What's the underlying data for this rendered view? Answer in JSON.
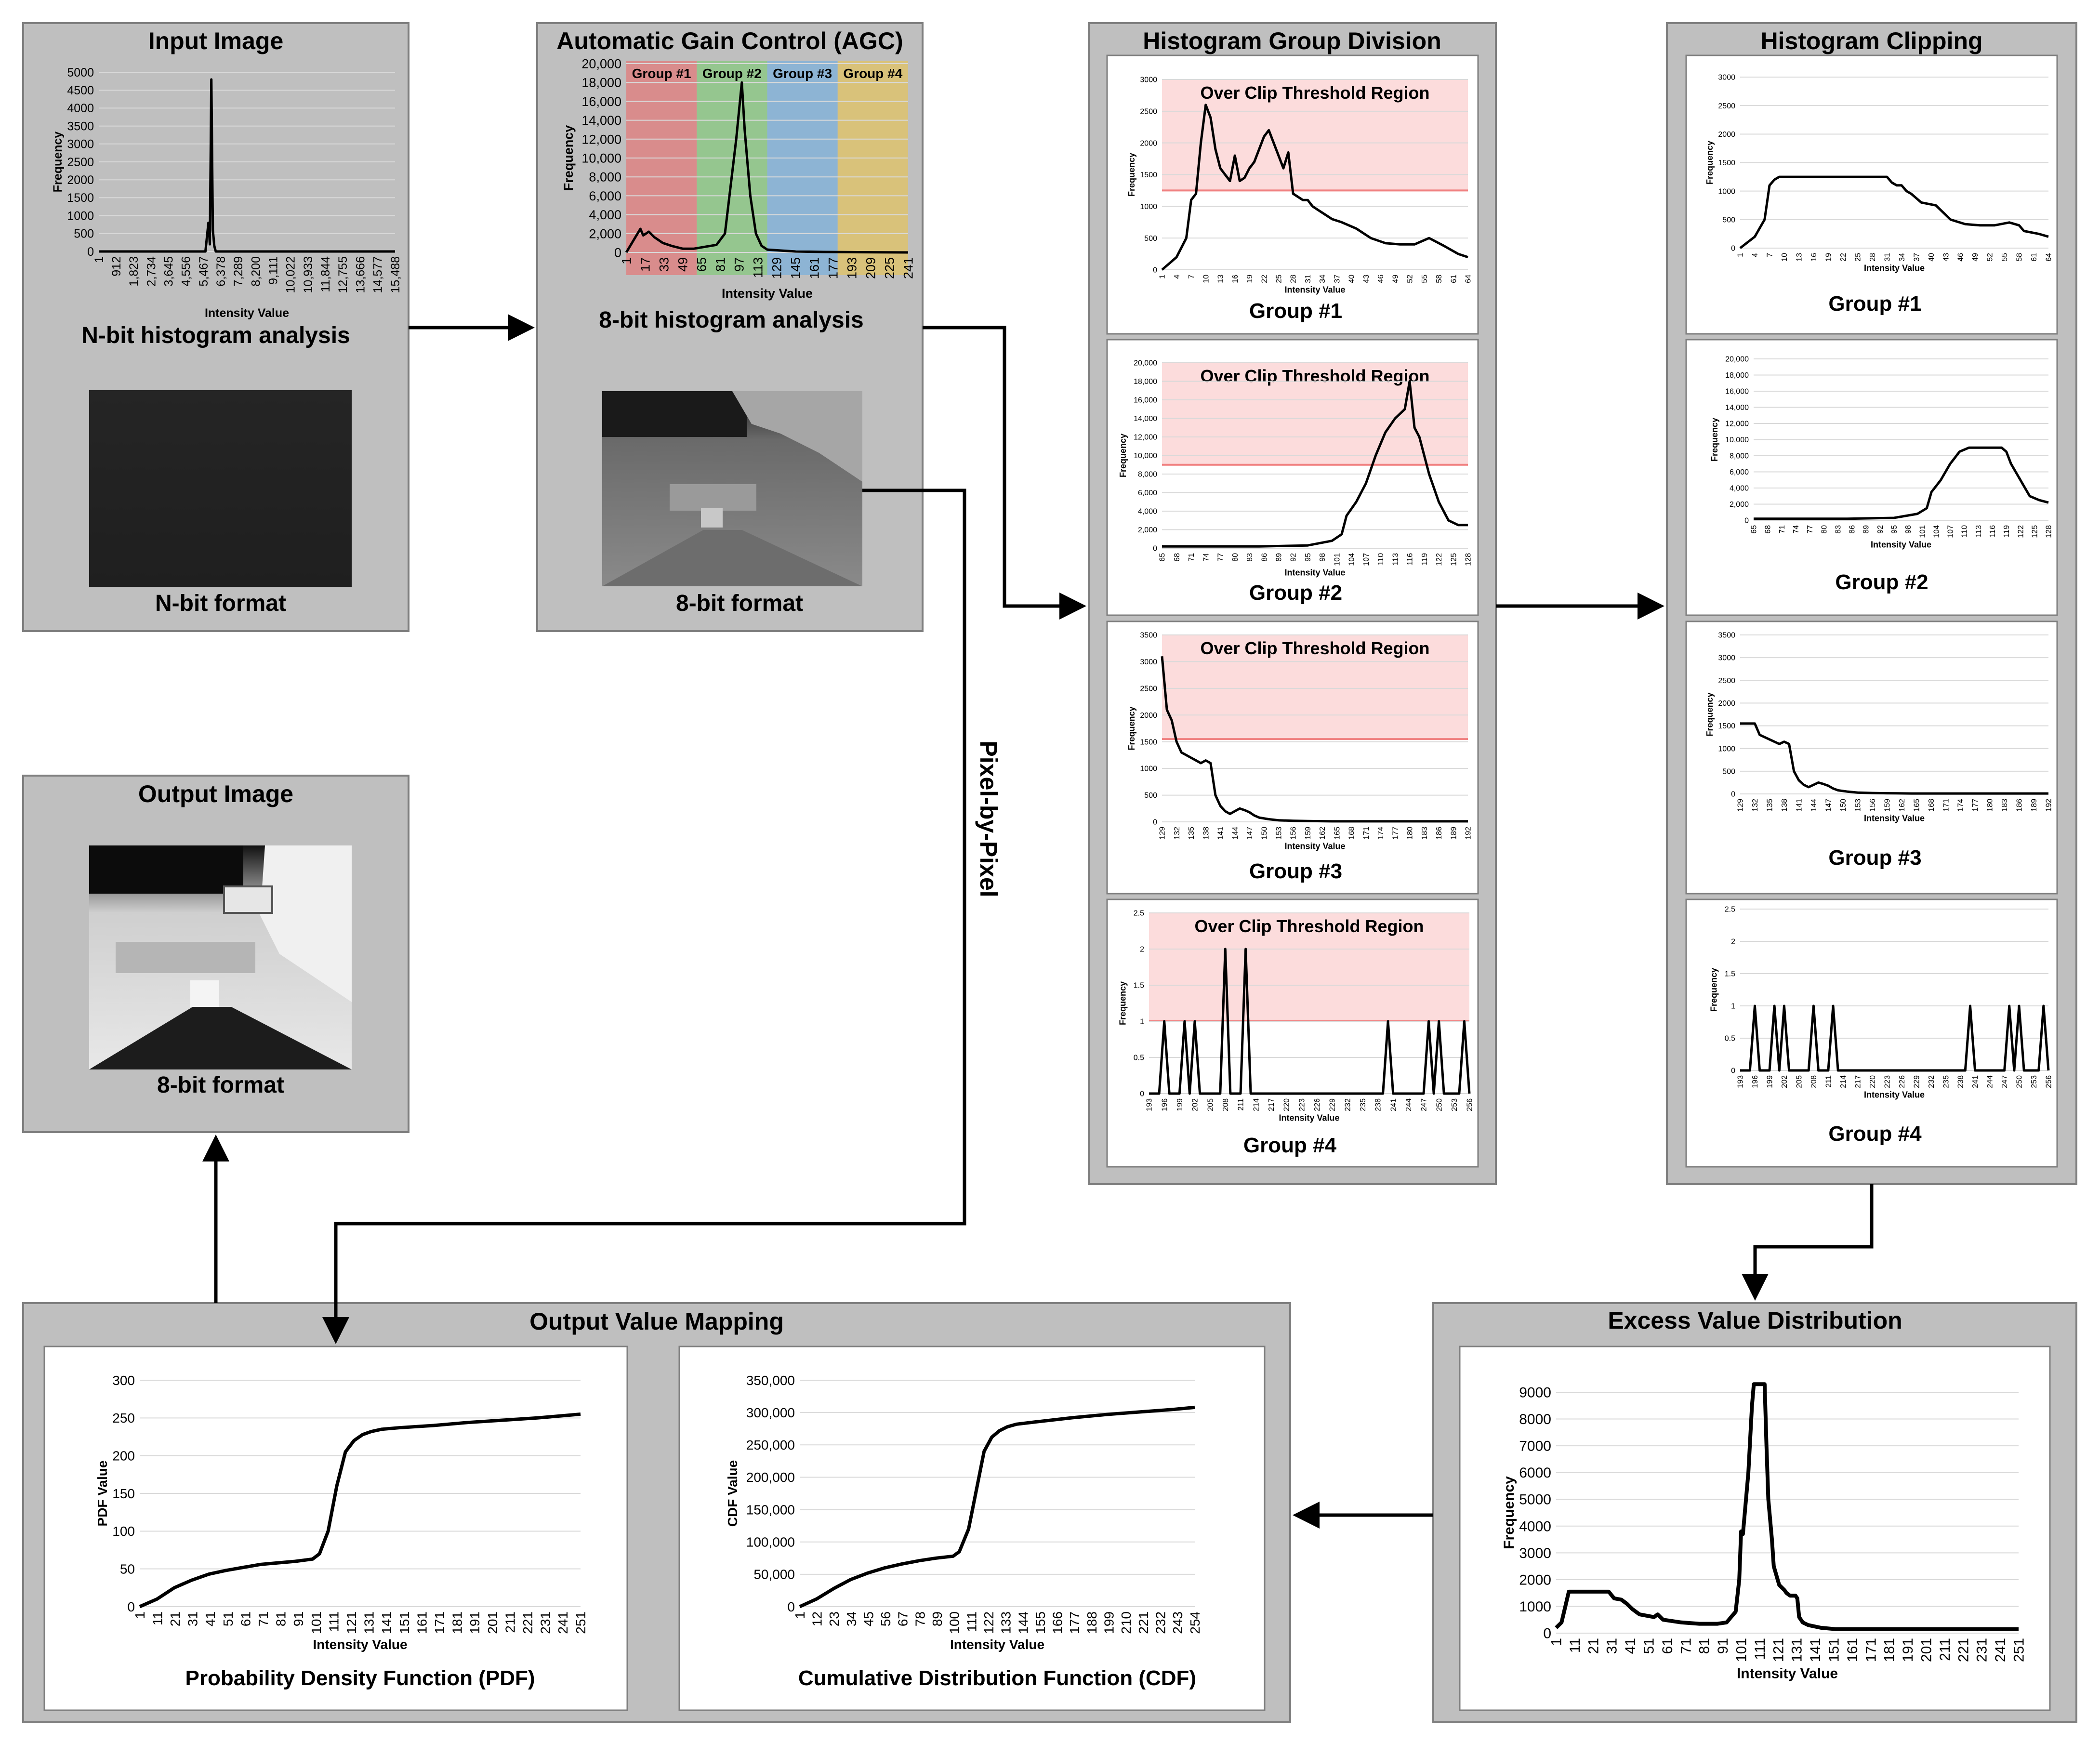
{
  "colors": {
    "panel": "#bfbfbf",
    "panel_border": "#7f7f7f",
    "clip_region": "#fcdcdc",
    "clip_line": "#f08080",
    "group1": "#d98c8c",
    "group2": "#95c68f",
    "group3": "#8db4d4",
    "group4": "#d9c27a",
    "image_dark": "#222222"
  },
  "panels": {
    "input": {
      "title": "Input Image",
      "hist_caption": "N-bit histogram analysis",
      "img_caption": "N-bit format"
    },
    "agc": {
      "title": "Automatic Gain Control (AGC)",
      "hist_caption": "8-bit histogram analysis",
      "img_caption": "8-bit format"
    },
    "hgd": {
      "title": "Histogram Group Division"
    },
    "clip": {
      "title": "Histogram Clipping"
    },
    "output": {
      "title": "Output Image",
      "img_caption": "8-bit format"
    },
    "ovm": {
      "title": "Output Value Mapping"
    },
    "evd": {
      "title": "Excess Value Distribution"
    }
  },
  "pixel_label": "Pixel-by-Pixel",
  "chart_data": [
    {
      "id": "input-hist",
      "type": "line",
      "title": "",
      "xlabel": "Intensity Value",
      "ylabel": "Frequency",
      "ylim": [
        0,
        5000
      ],
      "yticks": [
        "0",
        "500",
        "1000",
        "1500",
        "2000",
        "2500",
        "3000",
        "3500",
        "4000",
        "4500",
        "5000"
      ],
      "xticks": [
        "1",
        "912",
        "1,823",
        "2,734",
        "3,645",
        "4,556",
        "5,467",
        "6,378",
        "7,289",
        "8,200",
        "9,111",
        "10,022",
        "10,933",
        "11,844",
        "12,755",
        "13,666",
        "14,577",
        "15,488"
      ],
      "x": [
        0,
        0.36,
        0.37,
        0.375,
        0.38,
        0.385,
        0.39,
        0.395,
        0.4,
        0.405,
        0.41,
        1
      ],
      "values": [
        0,
        0,
        800,
        200,
        4800,
        600,
        150,
        0,
        0,
        0,
        0,
        0
      ]
    },
    {
      "id": "agc-hist",
      "type": "line",
      "title": "",
      "xlabel": "Intensity Value",
      "ylabel": "Frequency",
      "ylim": [
        0,
        20000
      ],
      "yticks": [
        "0",
        "2,000",
        "4,000",
        "6,000",
        "8,000",
        "10,000",
        "12,000",
        "14,000",
        "16,000",
        "18,000",
        "20,000"
      ],
      "xticks": [
        "1",
        "17",
        "33",
        "49",
        "65",
        "81",
        "97",
        "113",
        "129",
        "145",
        "161",
        "177",
        "193",
        "209",
        "225",
        "241"
      ],
      "groups": [
        "Group #1",
        "Group #2",
        "Group #3",
        "Group #4"
      ],
      "x": [
        0,
        0.03,
        0.05,
        0.06,
        0.08,
        0.1,
        0.13,
        0.16,
        0.2,
        0.24,
        0.28,
        0.32,
        0.35,
        0.37,
        0.39,
        0.41,
        0.42,
        0.44,
        0.46,
        0.48,
        0.5,
        0.55,
        0.6,
        0.7,
        0.8,
        1
      ],
      "values": [
        0,
        1500,
        2500,
        1800,
        2200,
        1600,
        1000,
        700,
        400,
        400,
        600,
        800,
        2000,
        7000,
        12000,
        18000,
        13000,
        6000,
        2000,
        700,
        300,
        200,
        100,
        50,
        30,
        0
      ]
    },
    {
      "id": "hgd-g1",
      "type": "line",
      "title": "Group #1",
      "region_label": "Over Clip Threshold Region",
      "threshold": 1250,
      "xlabel": "Intensity Value",
      "ylabel": "Frequency",
      "ylim": [
        0,
        3000
      ],
      "yticks": [
        "0",
        "500",
        "1000",
        "1500",
        "2000",
        "2500",
        "3000"
      ],
      "xticks": [
        "1",
        "4",
        "7",
        "10",
        "13",
        "16",
        "19",
        "22",
        "25",
        "28",
        "31",
        "34",
        "37",
        "40",
        "43",
        "46",
        "49",
        "52",
        "55",
        "58",
        "61",
        "64"
      ],
      "x": [
        0,
        3,
        5,
        6,
        7,
        8,
        9,
        10,
        11,
        12,
        13,
        14,
        15,
        16,
        17,
        18,
        19,
        20,
        21,
        22,
        23,
        24,
        25,
        26,
        27,
        28,
        29,
        30,
        31,
        32,
        33,
        35,
        37,
        40,
        43,
        46,
        49,
        52,
        55,
        58,
        61,
        63
      ],
      "values": [
        0,
        200,
        500,
        1100,
        1200,
        2000,
        2600,
        2400,
        1900,
        1600,
        1500,
        1400,
        1800,
        1400,
        1450,
        1600,
        1700,
        1900,
        2100,
        2200,
        2000,
        1800,
        1600,
        1850,
        1200,
        1150,
        1100,
        1100,
        1000,
        950,
        900,
        800,
        750,
        650,
        500,
        420,
        400,
        400,
        500,
        380,
        250,
        200
      ]
    },
    {
      "id": "hgd-g2",
      "type": "line",
      "title": "Group #2",
      "region_label": "Over Clip Threshold Region",
      "threshold": 9000,
      "xlabel": "Intensity Value",
      "ylabel": "Frequency",
      "ylim": [
        0,
        20000
      ],
      "yticks": [
        "0",
        "2,000",
        "4,000",
        "6,000",
        "8,000",
        "10,000",
        "12,000",
        "14,000",
        "16,000",
        "18,000",
        "20,000"
      ],
      "xticks": [
        "65",
        "68",
        "71",
        "74",
        "77",
        "80",
        "83",
        "86",
        "89",
        "92",
        "95",
        "98",
        "101",
        "104",
        "107",
        "110",
        "113",
        "116",
        "119",
        "122",
        "125",
        "128"
      ],
      "x": [
        0,
        20,
        30,
        35,
        37,
        38,
        40,
        42,
        44,
        46,
        48,
        50,
        51,
        52,
        53,
        54,
        55,
        57,
        59,
        61,
        63
      ],
      "values": [
        200,
        200,
        300,
        800,
        1500,
        3500,
        5000,
        7000,
        10000,
        12500,
        14000,
        15000,
        18000,
        13000,
        12000,
        10000,
        8000,
        5000,
        3000,
        2500,
        2500
      ]
    },
    {
      "id": "hgd-g3",
      "type": "line",
      "title": "Group #3",
      "region_label": "Over Clip Threshold Region",
      "threshold": 1550,
      "xlabel": "Intensity Value",
      "ylabel": "Frequency",
      "ylim": [
        0,
        3500
      ],
      "yticks": [
        "0",
        "500",
        "1000",
        "1500",
        "2000",
        "2500",
        "3000",
        "3500"
      ],
      "xticks": [
        "129",
        "132",
        "135",
        "138",
        "141",
        "144",
        "147",
        "150",
        "153",
        "156",
        "159",
        "162",
        "165",
        "168",
        "171",
        "174",
        "177",
        "180",
        "183",
        "186",
        "189",
        "192"
      ],
      "x": [
        0,
        1,
        2,
        3,
        4,
        5,
        6,
        7,
        8,
        9,
        10,
        11,
        12,
        13,
        14,
        15,
        16,
        17,
        18,
        19,
        20,
        22,
        24,
        27,
        30,
        35,
        40,
        50,
        63
      ],
      "values": [
        3100,
        2100,
        1900,
        1500,
        1300,
        1250,
        1200,
        1150,
        1100,
        1150,
        1100,
        500,
        300,
        200,
        150,
        200,
        250,
        220,
        180,
        120,
        80,
        50,
        30,
        20,
        15,
        10,
        10,
        10,
        10
      ]
    },
    {
      "id": "hgd-g4",
      "type": "line",
      "title": "Group #4",
      "region_label": "Over Clip Threshold Region",
      "threshold": 1,
      "xlabel": "Intensity Value",
      "ylabel": "Frequency",
      "ylim": [
        0,
        2.5
      ],
      "yticks": [
        "0",
        "0.5",
        "1",
        "1.5",
        "2",
        "2.5"
      ],
      "xticks": [
        "193",
        "196",
        "199",
        "202",
        "205",
        "208",
        "211",
        "214",
        "217",
        "220",
        "223",
        "226",
        "229",
        "232",
        "235",
        "238",
        "241",
        "244",
        "247",
        "250",
        "253",
        "256"
      ],
      "x": [
        0,
        2,
        3,
        4,
        6,
        7,
        8,
        9,
        10,
        14,
        15,
        16,
        18,
        19,
        20,
        46,
        47,
        48,
        54,
        55,
        56,
        57,
        58,
        61,
        62,
        63
      ],
      "values": [
        0,
        0,
        1,
        0,
        0,
        1,
        0,
        1,
        0,
        0,
        2,
        0,
        0,
        2,
        0,
        0,
        1,
        0,
        0,
        1,
        0,
        1,
        0,
        0,
        1,
        0
      ]
    },
    {
      "id": "clip-g1",
      "type": "line",
      "title": "Group #1",
      "xlabel": "Intensity Value",
      "ylabel": "Frequency",
      "ylim": [
        0,
        3000
      ],
      "yticks": [
        "0",
        "500",
        "1000",
        "1500",
        "2000",
        "2500",
        "3000"
      ],
      "xticks": [
        "1",
        "4",
        "7",
        "10",
        "13",
        "16",
        "19",
        "22",
        "25",
        "28",
        "31",
        "34",
        "37",
        "40",
        "43",
        "46",
        "49",
        "52",
        "55",
        "58",
        "61",
        "64"
      ],
      "x": [
        0,
        3,
        5,
        6,
        7,
        8,
        30,
        31,
        32,
        33,
        34,
        35,
        37,
        40,
        43,
        46,
        49,
        52,
        55,
        57,
        58,
        61,
        63
      ],
      "values": [
        0,
        200,
        500,
        1100,
        1200,
        1250,
        1250,
        1150,
        1100,
        1100,
        1000,
        950,
        800,
        750,
        500,
        420,
        400,
        400,
        450,
        400,
        300,
        250,
        200
      ]
    },
    {
      "id": "clip-g2",
      "type": "line",
      "title": "Group #2",
      "xlabel": "Intensity Value",
      "ylabel": "Frequency",
      "ylim": [
        0,
        20000
      ],
      "yticks": [
        "0",
        "2,000",
        "4,000",
        "6,000",
        "8,000",
        "10,000",
        "12,000",
        "14,000",
        "16,000",
        "18,000",
        "20,000"
      ],
      "xticks": [
        "65",
        "68",
        "71",
        "74",
        "77",
        "80",
        "83",
        "86",
        "89",
        "92",
        "95",
        "98",
        "101",
        "104",
        "107",
        "110",
        "113",
        "116",
        "119",
        "122",
        "125",
        "128"
      ],
      "x": [
        0,
        20,
        30,
        35,
        37,
        38,
        40,
        42,
        44,
        46,
        53,
        54,
        55,
        57,
        59,
        61,
        63
      ],
      "values": [
        200,
        200,
        300,
        800,
        1500,
        3500,
        5000,
        7000,
        8500,
        9000,
        9000,
        8500,
        7000,
        5000,
        3000,
        2500,
        2200
      ]
    },
    {
      "id": "clip-g3",
      "type": "line",
      "title": "Group #3",
      "xlabel": "Intensity Value",
      "ylabel": "Frequency",
      "ylim": [
        0,
        3500
      ],
      "yticks": [
        "0",
        "500",
        "1000",
        "1500",
        "2000",
        "2500",
        "3000",
        "3500"
      ],
      "xticks": [
        "129",
        "132",
        "135",
        "138",
        "141",
        "144",
        "147",
        "150",
        "153",
        "156",
        "159",
        "162",
        "165",
        "168",
        "171",
        "174",
        "177",
        "180",
        "183",
        "186",
        "189",
        "192"
      ],
      "x": [
        0,
        3,
        4,
        5,
        6,
        7,
        8,
        9,
        10,
        11,
        12,
        13,
        14,
        15,
        16,
        17,
        18,
        19,
        20,
        22,
        24,
        27,
        30,
        35,
        40,
        50,
        63
      ],
      "values": [
        1550,
        1550,
        1300,
        1250,
        1200,
        1150,
        1100,
        1150,
        1100,
        500,
        300,
        200,
        150,
        200,
        250,
        220,
        180,
        120,
        80,
        50,
        30,
        20,
        15,
        10,
        10,
        10,
        10
      ]
    },
    {
      "id": "clip-g4",
      "type": "line",
      "title": "Group #4",
      "xlabel": "Intensity Value",
      "ylabel": "Frequency",
      "ylim": [
        0,
        2.5
      ],
      "yticks": [
        "0",
        "0.5",
        "1",
        "1.5",
        "2",
        "2.5"
      ],
      "xticks": [
        "193",
        "196",
        "199",
        "202",
        "205",
        "208",
        "211",
        "214",
        "217",
        "220",
        "223",
        "226",
        "229",
        "232",
        "235",
        "238",
        "241",
        "244",
        "247",
        "250",
        "253",
        "256"
      ],
      "x": [
        0,
        2,
        3,
        4,
        6,
        7,
        8,
        9,
        10,
        14,
        15,
        16,
        18,
        19,
        20,
        46,
        47,
        48,
        54,
        55,
        56,
        57,
        58,
        61,
        62,
        63
      ],
      "values": [
        0,
        0,
        1,
        0,
        0,
        1,
        0,
        1,
        0,
        0,
        1,
        0,
        0,
        1,
        0,
        0,
        1,
        0,
        0,
        1,
        0,
        1,
        0,
        0,
        1,
        0
      ]
    },
    {
      "id": "pdf",
      "type": "line",
      "title": "Probability Density Function (PDF)",
      "xlabel": "Intensity Value",
      "ylabel": "PDF Value",
      "ylim": [
        0,
        300
      ],
      "yticks": [
        "0",
        "50",
        "100",
        "150",
        "200",
        "250",
        "300"
      ],
      "xticks": [
        "1",
        "11",
        "21",
        "31",
        "41",
        "51",
        "61",
        "71",
        "81",
        "91",
        "101",
        "111",
        "121",
        "131",
        "141",
        "151",
        "161",
        "171",
        "181",
        "191",
        "201",
        "211",
        "221",
        "231",
        "241",
        "251"
      ],
      "x": [
        1,
        11,
        21,
        31,
        41,
        51,
        61,
        71,
        81,
        91,
        101,
        105,
        110,
        115,
        120,
        125,
        130,
        135,
        141,
        151,
        171,
        191,
        211,
        231,
        256
      ],
      "values": [
        0,
        10,
        25,
        35,
        43,
        48,
        52,
        56,
        58,
        60,
        63,
        70,
        100,
        160,
        205,
        220,
        228,
        232,
        235,
        237,
        240,
        244,
        247,
        250,
        255
      ]
    },
    {
      "id": "cdf",
      "type": "line",
      "title": "Cumulative Distribution Function (CDF)",
      "xlabel": "Intensity Value",
      "ylabel": "CDF Value",
      "ylim": [
        0,
        350000
      ],
      "yticks": [
        "0",
        "50,000",
        "100,000",
        "150,000",
        "200,000",
        "250,000",
        "300,000",
        "350,000"
      ],
      "xticks": [
        "1",
        "12",
        "23",
        "34",
        "45",
        "56",
        "67",
        "78",
        "89",
        "100",
        "111",
        "122",
        "133",
        "144",
        "155",
        "166",
        "177",
        "188",
        "199",
        "210",
        "221",
        "232",
        "243",
        "254"
      ],
      "x": [
        1,
        12,
        23,
        34,
        45,
        56,
        67,
        78,
        89,
        100,
        104,
        110,
        115,
        120,
        125,
        130,
        135,
        141,
        155,
        177,
        199,
        221,
        243,
        256
      ],
      "values": [
        0,
        12000,
        28000,
        42000,
        52000,
        60000,
        66000,
        71000,
        75000,
        78000,
        85000,
        120000,
        180000,
        240000,
        262000,
        272000,
        278000,
        282000,
        286000,
        292000,
        297000,
        301000,
        305000,
        308000
      ]
    },
    {
      "id": "evd",
      "type": "line",
      "title": "",
      "xlabel": "Intensity Value",
      "ylabel": "Frequency",
      "ylim": [
        0,
        9000
      ],
      "yticks": [
        "0",
        "1000",
        "2000",
        "3000",
        "4000",
        "5000",
        "6000",
        "7000",
        "8000",
        "9000"
      ],
      "xticks": [
        "1",
        "11",
        "21",
        "31",
        "41",
        "51",
        "61",
        "71",
        "81",
        "91",
        "101",
        "111",
        "121",
        "131",
        "141",
        "151",
        "161",
        "171",
        "181",
        "191",
        "201",
        "211",
        "221",
        "231",
        "241",
        "251"
      ],
      "x": [
        1,
        4,
        8,
        30,
        33,
        37,
        40,
        43,
        47,
        55,
        57,
        60,
        70,
        80,
        90,
        95,
        100,
        102,
        103,
        104,
        107,
        109,
        110,
        111,
        112,
        115,
        116,
        117,
        118,
        120,
        121,
        124,
        127,
        128,
        130,
        133,
        134,
        135,
        137,
        140,
        147,
        155,
        175,
        200,
        256
      ],
      "values": [
        200,
        400,
        1550,
        1550,
        1300,
        1250,
        1100,
        900,
        700,
        600,
        700,
        500,
        400,
        350,
        350,
        400,
        800,
        2000,
        3800,
        3700,
        6000,
        8500,
        9300,
        9300,
        9300,
        9300,
        9300,
        7000,
        5000,
        3500,
        2500,
        1800,
        1600,
        1500,
        1400,
        1400,
        1300,
        600,
        400,
        300,
        200,
        150,
        150,
        150,
        150
      ]
    }
  ]
}
